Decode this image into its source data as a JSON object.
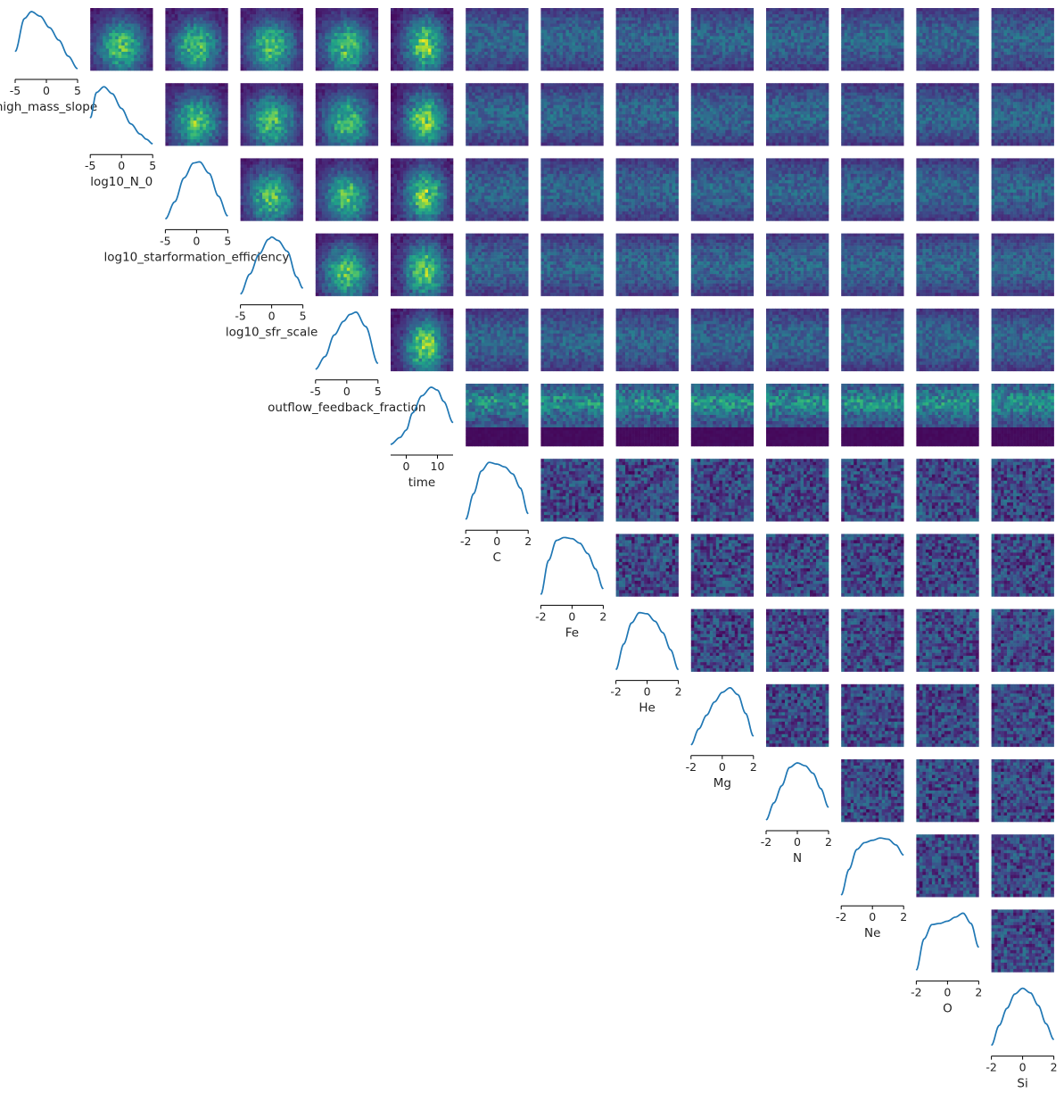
{
  "chart_data": {
    "type": "pairplot",
    "layout": "upper-triangle corner plot: 1D kernel-density curves on the diagonal, 2D histograms (viridis) above the diagonal",
    "line_color": "#1f77b4",
    "colormap": "viridis",
    "grid": false,
    "variables": [
      {
        "label": "high_mass_slope",
        "ticks": [
          -5,
          0,
          5
        ],
        "tick_labels": [
          "-5",
          "0",
          "5"
        ],
        "xlim": [
          -5,
          5
        ],
        "density": {
          "x": [
            -5.0,
            -3.5,
            -2.4,
            -1.0,
            0.5,
            2.0,
            3.5,
            5.0
          ],
          "y": [
            0.3,
            0.88,
            1.0,
            0.92,
            0.72,
            0.5,
            0.22,
            0.0
          ]
        }
      },
      {
        "label": "log10_N_0",
        "ticks": [
          -5,
          0,
          5
        ],
        "tick_labels": [
          "-5",
          "0",
          "5"
        ],
        "xlim": [
          -5,
          5
        ],
        "density": {
          "x": [
            -5.0,
            -4.0,
            -2.8,
            -1.5,
            0.0,
            1.5,
            3.0,
            4.0,
            5.0
          ],
          "y": [
            0.45,
            0.9,
            1.0,
            0.88,
            0.62,
            0.35,
            0.17,
            0.08,
            0.0
          ]
        }
      },
      {
        "label": "log10_starformation_efficiency",
        "ticks": [
          -5,
          0,
          5
        ],
        "tick_labels": [
          "-5",
          "0",
          "5"
        ],
        "xlim": [
          -5,
          5
        ],
        "density": {
          "x": [
            -5.0,
            -3.5,
            -2.0,
            -0.5,
            0.5,
            2.0,
            3.5,
            5.0
          ],
          "y": [
            0.0,
            0.3,
            0.72,
            0.98,
            1.0,
            0.8,
            0.4,
            0.05
          ]
        }
      },
      {
        "label": "log10_sfr_scale",
        "ticks": [
          -5,
          0,
          5
        ],
        "tick_labels": [
          "-5",
          "0",
          "5"
        ],
        "xlim": [
          -5,
          5
        ],
        "density": {
          "x": [
            -5.0,
            -3.5,
            -2.0,
            -0.5,
            0.0,
            1.0,
            2.5,
            4.0,
            5.0
          ],
          "y": [
            0.0,
            0.35,
            0.7,
            0.96,
            1.0,
            0.94,
            0.75,
            0.3,
            0.1
          ]
        }
      },
      {
        "label": "outflow_feedback_fraction",
        "ticks": [
          -5,
          0,
          5
        ],
        "tick_labels": [
          "-5",
          "0",
          "5"
        ],
        "xlim": [
          -5,
          5
        ],
        "density": {
          "x": [
            -5.0,
            -3.5,
            -2.0,
            -0.5,
            0.5,
            1.5,
            3.0,
            5.0
          ],
          "y": [
            0.0,
            0.22,
            0.6,
            0.84,
            0.96,
            1.0,
            0.75,
            0.1
          ]
        }
      },
      {
        "label": "time",
        "ticks": [
          0,
          10
        ],
        "tick_labels": [
          "0",
          "10"
        ],
        "xlim": [
          -5,
          15
        ],
        "density": {
          "x": [
            -5.0,
            -2.0,
            0.0,
            2.0,
            5.0,
            8.0,
            10.0,
            12.0,
            15.0
          ],
          "y": [
            0.0,
            0.12,
            0.25,
            0.55,
            0.85,
            1.0,
            0.95,
            0.75,
            0.38
          ]
        }
      },
      {
        "label": "C",
        "ticks": [
          -2,
          0,
          2
        ],
        "tick_labels": [
          "-2",
          "0",
          "2"
        ],
        "xlim": [
          -2,
          2
        ],
        "density": {
          "x": [
            -2.0,
            -1.5,
            -1.0,
            -0.5,
            0.0,
            0.5,
            1.0,
            1.5,
            2.0
          ],
          "y": [
            0.0,
            0.45,
            0.85,
            1.0,
            0.97,
            0.92,
            0.8,
            0.55,
            0.1
          ]
        }
      },
      {
        "label": "Fe",
        "ticks": [
          -2,
          0,
          2
        ],
        "tick_labels": [
          "-2",
          "0",
          "2"
        ],
        "xlim": [
          -2,
          2
        ],
        "density": {
          "x": [
            -2.0,
            -1.5,
            -1.0,
            -0.5,
            0.0,
            0.5,
            1.0,
            1.5,
            2.0
          ],
          "y": [
            0.0,
            0.6,
            0.95,
            1.0,
            0.98,
            0.9,
            0.72,
            0.45,
            0.1
          ]
        }
      },
      {
        "label": "He",
        "ticks": [
          -2,
          0,
          2
        ],
        "tick_labels": [
          "-2",
          "0",
          "2"
        ],
        "xlim": [
          -2,
          2
        ],
        "density": {
          "x": [
            -2.0,
            -1.5,
            -1.0,
            -0.5,
            0.0,
            0.5,
            1.0,
            1.5,
            2.0
          ],
          "y": [
            0.0,
            0.45,
            0.82,
            1.0,
            0.98,
            0.85,
            0.65,
            0.35,
            0.0
          ]
        }
      },
      {
        "label": "Mg",
        "ticks": [
          -2,
          0,
          2
        ],
        "tick_labels": [
          "-2",
          "0",
          "2"
        ],
        "xlim": [
          -2,
          2
        ],
        "density": {
          "x": [
            -2.0,
            -1.5,
            -1.0,
            -0.5,
            0.0,
            0.5,
            1.0,
            1.5,
            2.0
          ],
          "y": [
            0.0,
            0.28,
            0.52,
            0.75,
            0.92,
            1.0,
            0.88,
            0.55,
            0.15
          ]
        }
      },
      {
        "label": "N",
        "ticks": [
          -2,
          0,
          2
        ],
        "tick_labels": [
          "-2",
          "0",
          "2"
        ],
        "xlim": [
          -2,
          2
        ],
        "density": {
          "x": [
            -2.0,
            -1.5,
            -1.0,
            -0.5,
            0.0,
            0.5,
            1.0,
            1.5,
            2.0
          ],
          "y": [
            0.0,
            0.3,
            0.6,
            0.92,
            1.0,
            0.95,
            0.82,
            0.55,
            0.22
          ]
        }
      },
      {
        "label": "Ne",
        "ticks": [
          -2,
          0,
          2
        ],
        "tick_labels": [
          "-2",
          "0",
          "2"
        ],
        "xlim": [
          -2,
          2
        ],
        "density": {
          "x": [
            -2.0,
            -1.5,
            -1.0,
            -0.5,
            0.0,
            0.5,
            1.0,
            1.5,
            2.0
          ],
          "y": [
            0.0,
            0.45,
            0.8,
            0.92,
            0.96,
            1.0,
            0.98,
            0.88,
            0.7
          ]
        }
      },
      {
        "label": "O",
        "ticks": [
          -2,
          0,
          2
        ],
        "tick_labels": [
          "-2",
          "0",
          "2"
        ],
        "xlim": [
          -2,
          2
        ],
        "density": {
          "x": [
            -2.0,
            -1.5,
            -1.0,
            -0.5,
            0.0,
            0.5,
            1.0,
            1.5,
            2.0
          ],
          "y": [
            0.0,
            0.55,
            0.8,
            0.82,
            0.86,
            0.93,
            1.0,
            0.82,
            0.4
          ]
        }
      },
      {
        "label": "Si",
        "ticks": [
          -2,
          0,
          2
        ],
        "tick_labels": [
          "-2",
          "0",
          "2"
        ],
        "xlim": [
          -2,
          2
        ],
        "density": {
          "x": [
            -2.0,
            -1.5,
            -1.0,
            -0.5,
            0.0,
            0.5,
            1.0,
            1.5,
            2.0
          ],
          "y": [
            0.0,
            0.35,
            0.65,
            0.9,
            1.0,
            0.92,
            0.7,
            0.38,
            0.1
          ]
        }
      }
    ]
  }
}
